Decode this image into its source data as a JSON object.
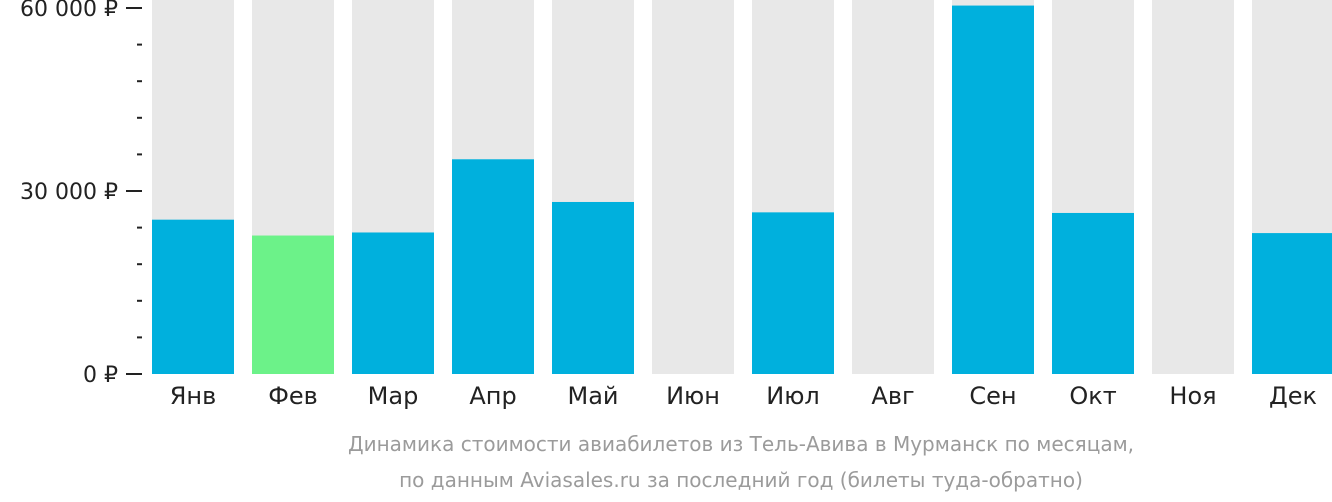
{
  "colors": {
    "background_bar": "#e8e8e8",
    "bar": "#00b0dd",
    "highlight_bar": "#6cf289",
    "axis": "#222222",
    "caption": "#9b9b9b"
  },
  "chart_data": {
    "type": "bar",
    "categories": [
      "Янв",
      "Фев",
      "Мар",
      "Апр",
      "Май",
      "Июн",
      "Июл",
      "Авг",
      "Сен",
      "Окт",
      "Ноя",
      "Дек"
    ],
    "values": [
      25300,
      22700,
      23200,
      35200,
      28200,
      null,
      26500,
      null,
      60400,
      26400,
      null,
      23100
    ],
    "highlight_index": 1,
    "ylim": [
      0,
      60000
    ],
    "y_ticks": [
      {
        "value": 0,
        "label": "0 ₽"
      },
      {
        "value": 30000,
        "label": "30 000 ₽"
      },
      {
        "value": 60000,
        "label": "60 000 ₽"
      }
    ],
    "minor_tick_step": 6000,
    "title": "",
    "xlabel": "",
    "ylabel": ""
  },
  "caption": {
    "line1": "Динамика стоимости авиабилетов из Тель-Авива в Мурманск по месяцам,",
    "line2": "по данным Aviasales.ru за последний год (билеты туда-обратно)"
  }
}
